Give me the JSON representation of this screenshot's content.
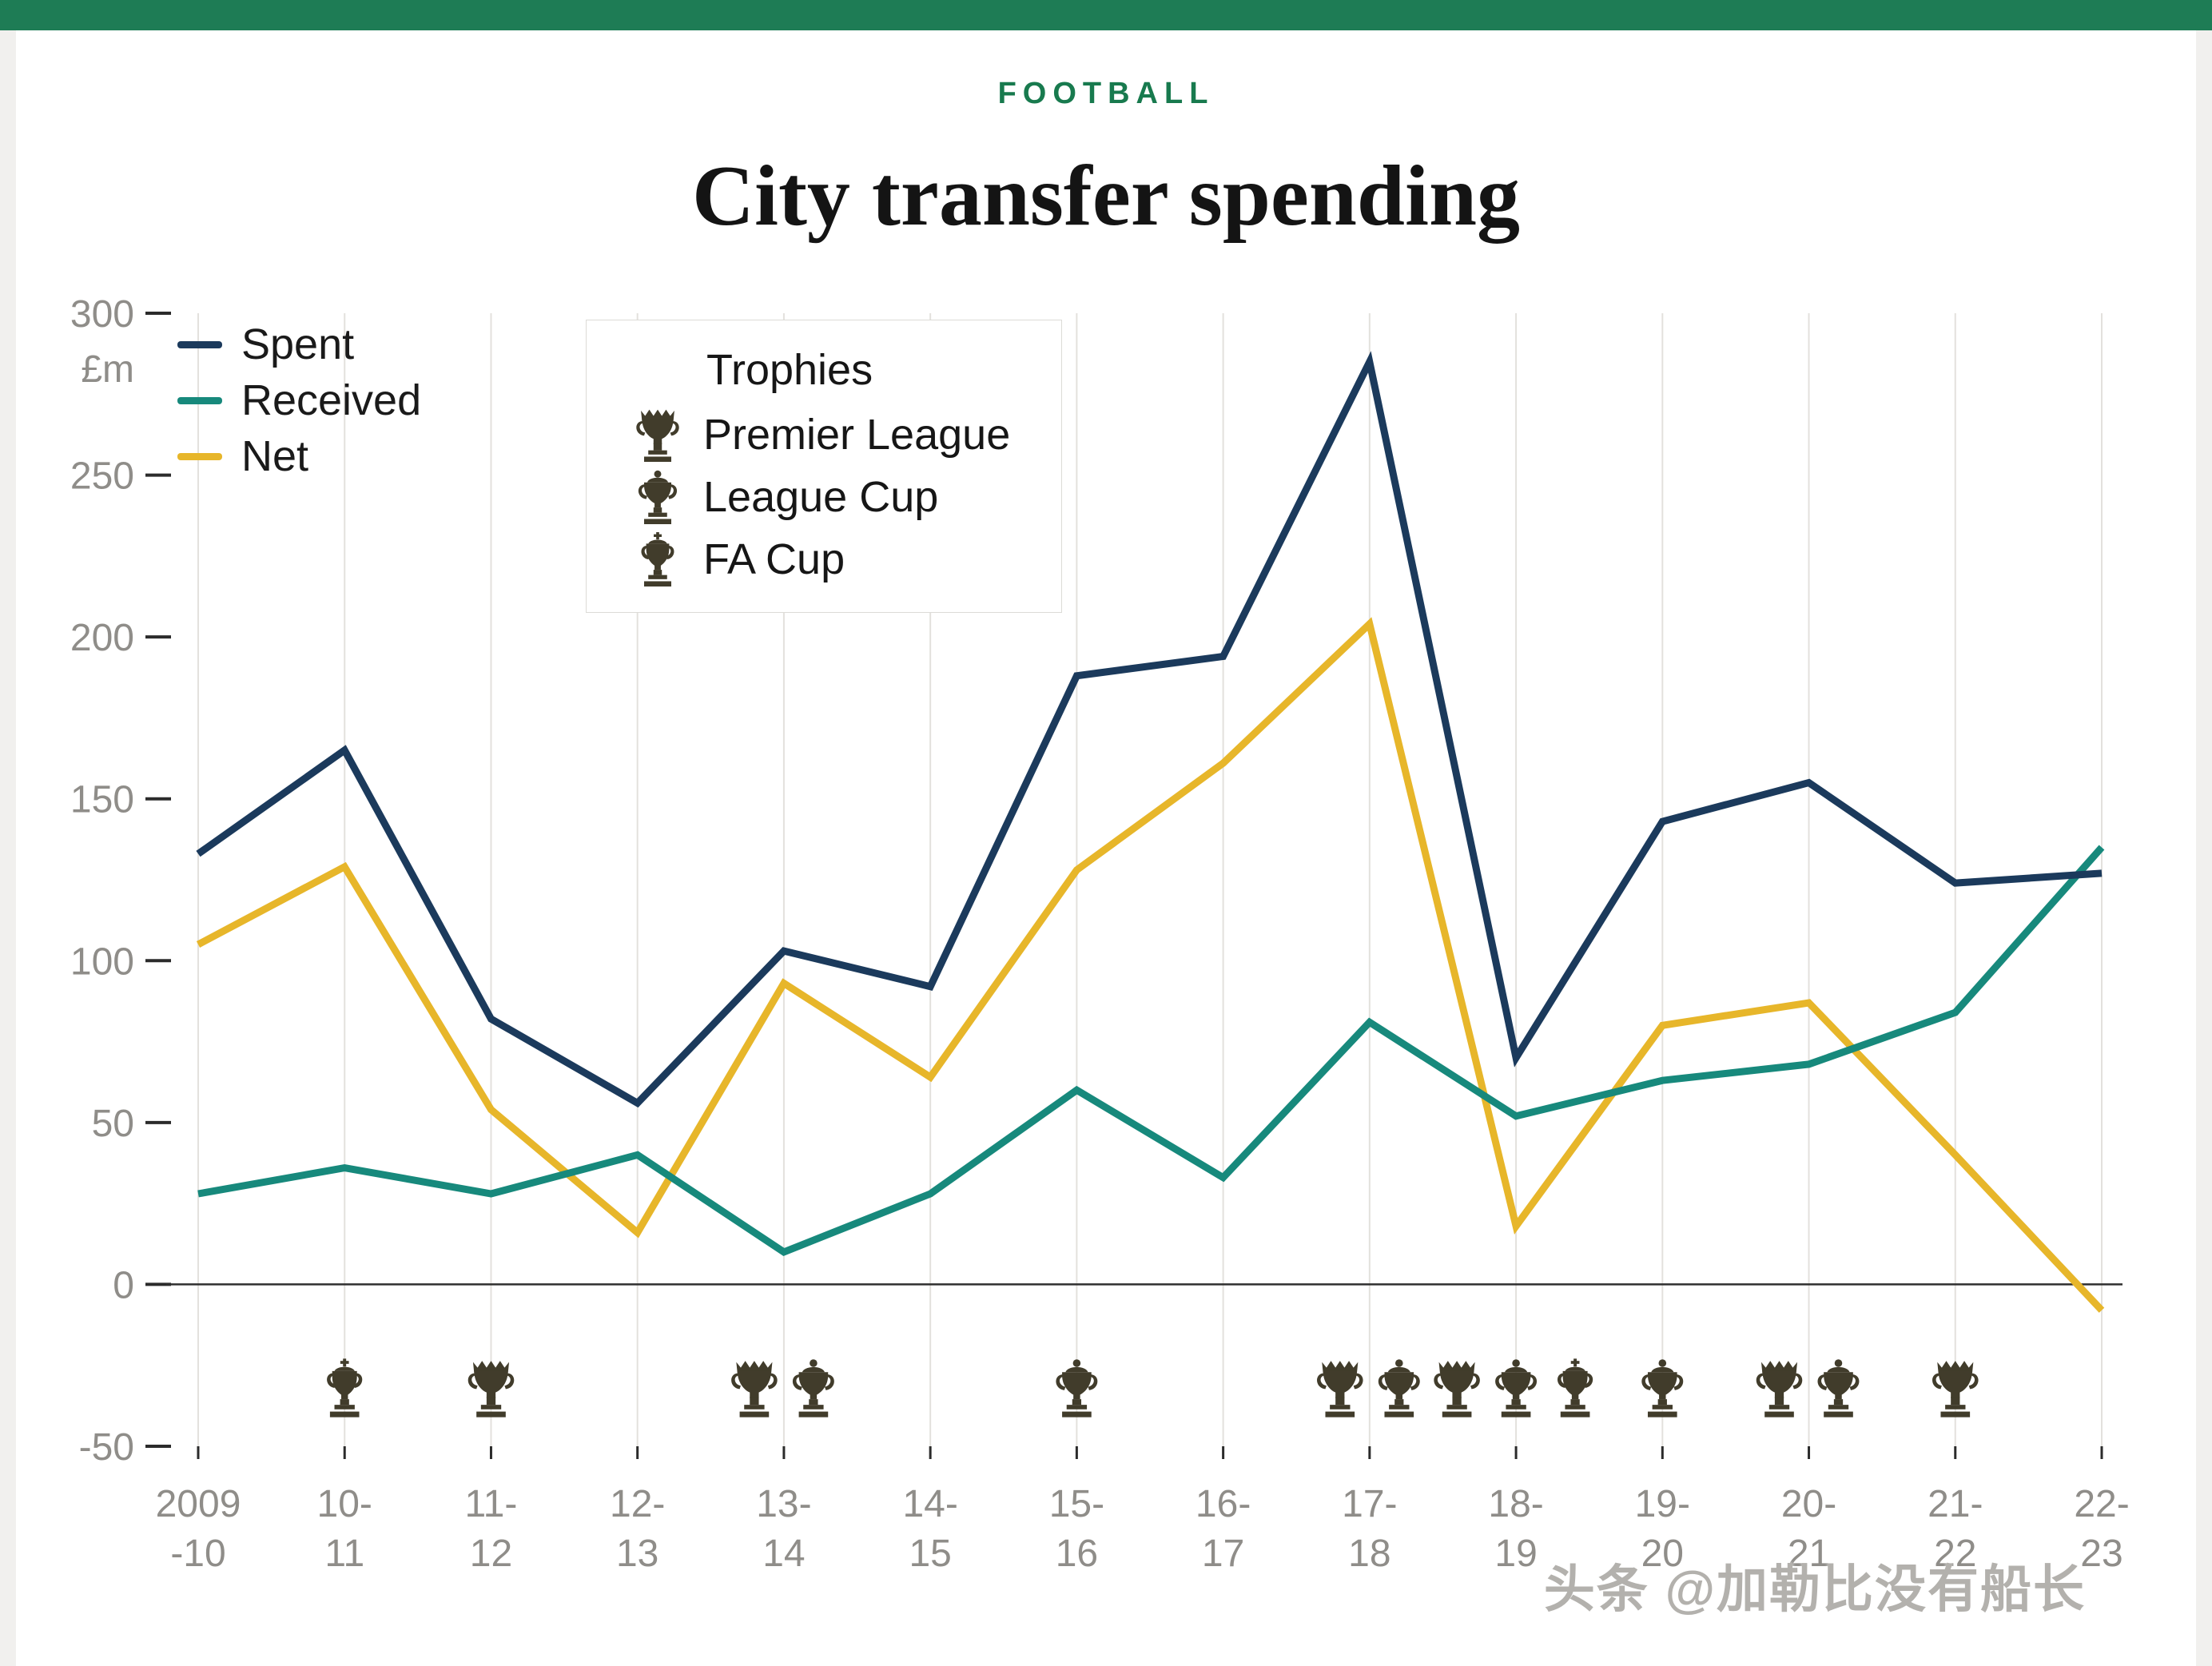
{
  "page": {
    "kicker": "FOOTBALL",
    "title": "City transfer spending",
    "watermark": "头条 @加勒比没有船长"
  },
  "colors": {
    "topbar": "#1e7c55",
    "kicker": "#187a4e",
    "spent": "#1b3a5c",
    "received": "#17897c",
    "net": "#e7b62a",
    "trophy": "#413c2b",
    "grid": "#e3e1dd",
    "axis_text": "#8f8d89",
    "zero_line": "#2f2f2f",
    "tick": "#2b2b2b"
  },
  "legend": {
    "items": [
      {
        "label": "Spent",
        "key": "spent"
      },
      {
        "label": "Received",
        "key": "received"
      },
      {
        "label": "Net",
        "key": "net"
      }
    ]
  },
  "trophy_legend": {
    "title": "Trophies",
    "items": [
      {
        "label": "Premier League",
        "sym": "#sym-premier-league"
      },
      {
        "label": "League Cup",
        "sym": "#sym-league-cup"
      },
      {
        "label": "FA Cup",
        "sym": "#sym-fa-cup"
      }
    ]
  },
  "chart_data": {
    "type": "line",
    "title": "City transfer spending",
    "ylabel": "£m",
    "ylim": [
      -50,
      300
    ],
    "yticks": [
      300,
      250,
      200,
      150,
      100,
      50,
      0,
      -50
    ],
    "grid": "vertical-only",
    "legend_position": "top-left",
    "categories": [
      "2009-10",
      "10-11",
      "11-12",
      "12-13",
      "13-14",
      "14-15",
      "15-16",
      "16-17",
      "17-18",
      "18-19",
      "19-20",
      "20-21",
      "21-22",
      "22-23"
    ],
    "x_labels": [
      [
        "2009",
        "-10"
      ],
      [
        "10-",
        "11"
      ],
      [
        "11-",
        "12"
      ],
      [
        "12-",
        "13"
      ],
      [
        "13-",
        "14"
      ],
      [
        "14-",
        "15"
      ],
      [
        "15-",
        "16"
      ],
      [
        "16-",
        "17"
      ],
      [
        "17-",
        "18"
      ],
      [
        "18-",
        "19"
      ],
      [
        "19-",
        "20"
      ],
      [
        "20-",
        "21"
      ],
      [
        "21-",
        "22"
      ],
      [
        "22-",
        "23"
      ]
    ],
    "series": [
      {
        "name": "Spent",
        "color_key": "spent",
        "values": [
          133,
          165,
          82,
          56,
          103,
          92,
          188,
          194,
          285,
          70,
          143,
          155,
          124,
          127
        ]
      },
      {
        "name": "Received",
        "color_key": "received",
        "values": [
          28,
          36,
          28,
          40,
          10,
          28,
          60,
          33,
          81,
          52,
          63,
          68,
          84,
          135
        ]
      },
      {
        "name": "Net",
        "color_key": "net",
        "values": [
          105,
          129,
          54,
          16,
          93,
          64,
          128,
          161,
          204,
          18,
          80,
          87,
          40,
          -8
        ]
      }
    ],
    "trophies_by_season": [
      [],
      [
        "fa-cup"
      ],
      [
        "premier-league"
      ],
      [],
      [
        "premier-league",
        "league-cup"
      ],
      [],
      [
        "league-cup"
      ],
      [],
      [
        "premier-league",
        "league-cup"
      ],
      [
        "premier-league",
        "league-cup",
        "fa-cup"
      ],
      [
        "league-cup"
      ],
      [
        "premier-league",
        "league-cup"
      ],
      [
        "premier-league"
      ],
      []
    ]
  }
}
